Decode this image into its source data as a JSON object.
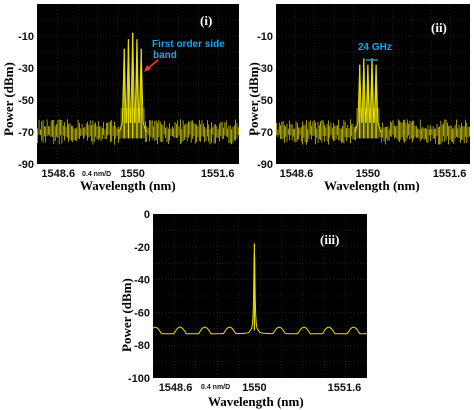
{
  "chart_data": [
    {
      "type": "line",
      "panel_label": "(i)",
      "xlabel": "Wavelength (nm)",
      "ylabel": "Power (dBm)",
      "x_tick_labels": [
        "1548.6",
        "1550",
        "1551.6"
      ],
      "x_tick_values": [
        1548.6,
        1550.0,
        1551.6
      ],
      "xlim": [
        1548.2,
        1552.0
      ],
      "y_ticks": [
        -10,
        -30,
        -50,
        -70,
        -90
      ],
      "ylim": [
        -90,
        10
      ],
      "scale_label": "0.4 nm/D",
      "noise_floor": {
        "x_range": [
          1548.2,
          1552.0
        ],
        "level": -70,
        "spread": 8
      },
      "peaks": [
        {
          "x": 1549.84,
          "y": -18
        },
        {
          "x": 1549.92,
          "y": -12
        },
        {
          "x": 1550.0,
          "y": -8
        },
        {
          "x": 1550.08,
          "y": -12
        },
        {
          "x": 1550.16,
          "y": -18
        }
      ],
      "annotation": {
        "text": "First order side band",
        "lines": [
          "First order side",
          "band"
        ],
        "target": {
          "x": 1550.08,
          "y": -12
        }
      },
      "color": "#e8e000"
    },
    {
      "type": "line",
      "panel_label": "(ii)",
      "xlabel": "Wavelength (nm)",
      "ylabel": "Power (dBm)",
      "x_tick_labels": [
        "1548.6",
        "1550",
        "1551.6"
      ],
      "x_tick_values": [
        1548.6,
        1550.0,
        1551.6
      ],
      "xlim": [
        1548.2,
        1552.0
      ],
      "y_ticks": [
        -10,
        -30,
        -50,
        -70,
        -90
      ],
      "ylim": [
        -90,
        10
      ],
      "noise_floor": {
        "x_range": [
          1548.2,
          1552.0
        ],
        "level": -70,
        "spread": 8
      },
      "peaks": [
        {
          "x": 1549.84,
          "y": -28
        },
        {
          "x": 1549.92,
          "y": -24
        },
        {
          "x": 1550.0,
          "y": -28
        },
        {
          "x": 1550.08,
          "y": -24
        },
        {
          "x": 1550.16,
          "y": -28
        }
      ],
      "annotation": {
        "text": "24 GHz",
        "marker": {
          "x1": 1549.92,
          "x2": 1550.08,
          "y": -20
        }
      },
      "color": "#e8e000"
    },
    {
      "type": "line",
      "panel_label": "(iii)",
      "xlabel": "Wavelength (nm)",
      "ylabel": "Power (dBm)",
      "x_tick_labels": [
        "1548.6",
        "1550",
        "1551.6"
      ],
      "x_tick_values": [
        1548.6,
        1550.0,
        1551.6
      ],
      "xlim": [
        1548.2,
        1552.0
      ],
      "y_ticks": [
        0,
        -20,
        -40,
        -60,
        -80,
        -100
      ],
      "ylim": [
        -100,
        0
      ],
      "scale_label": "0.4 nm/D",
      "baseline": {
        "level": -73,
        "ripple": 4,
        "period": 0.44
      },
      "peak": {
        "x": 1550.0,
        "y": -18
      },
      "color": "#e8e000"
    }
  ]
}
